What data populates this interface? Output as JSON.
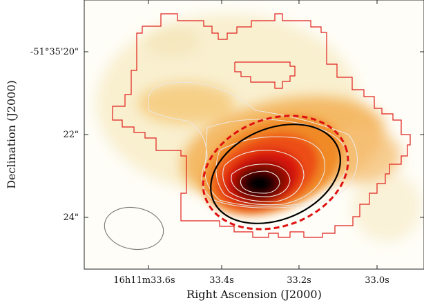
{
  "chart_data": {
    "type": "heatmap",
    "title": "",
    "xlabel": "Right Ascension (J2000)",
    "ylabel": "Declination (J2000)",
    "x_ticks": [
      "16h11m33.6s",
      "33.4s",
      "33.2s",
      "33.0s"
    ],
    "y_ticks": [
      "-51°35'20\"",
      "22\"",
      "24\""
    ],
    "colormap": "white-yellow-orange-red-black (gist_heat reversed)",
    "colors": {
      "boundary_contour": "#e0201c",
      "inner_contours": "#e8e0d8",
      "fit_ellipse": "#000000",
      "dashed_ellipse": "#e01010",
      "beam": "#777777"
    },
    "legend": "none",
    "grid": false
  }
}
